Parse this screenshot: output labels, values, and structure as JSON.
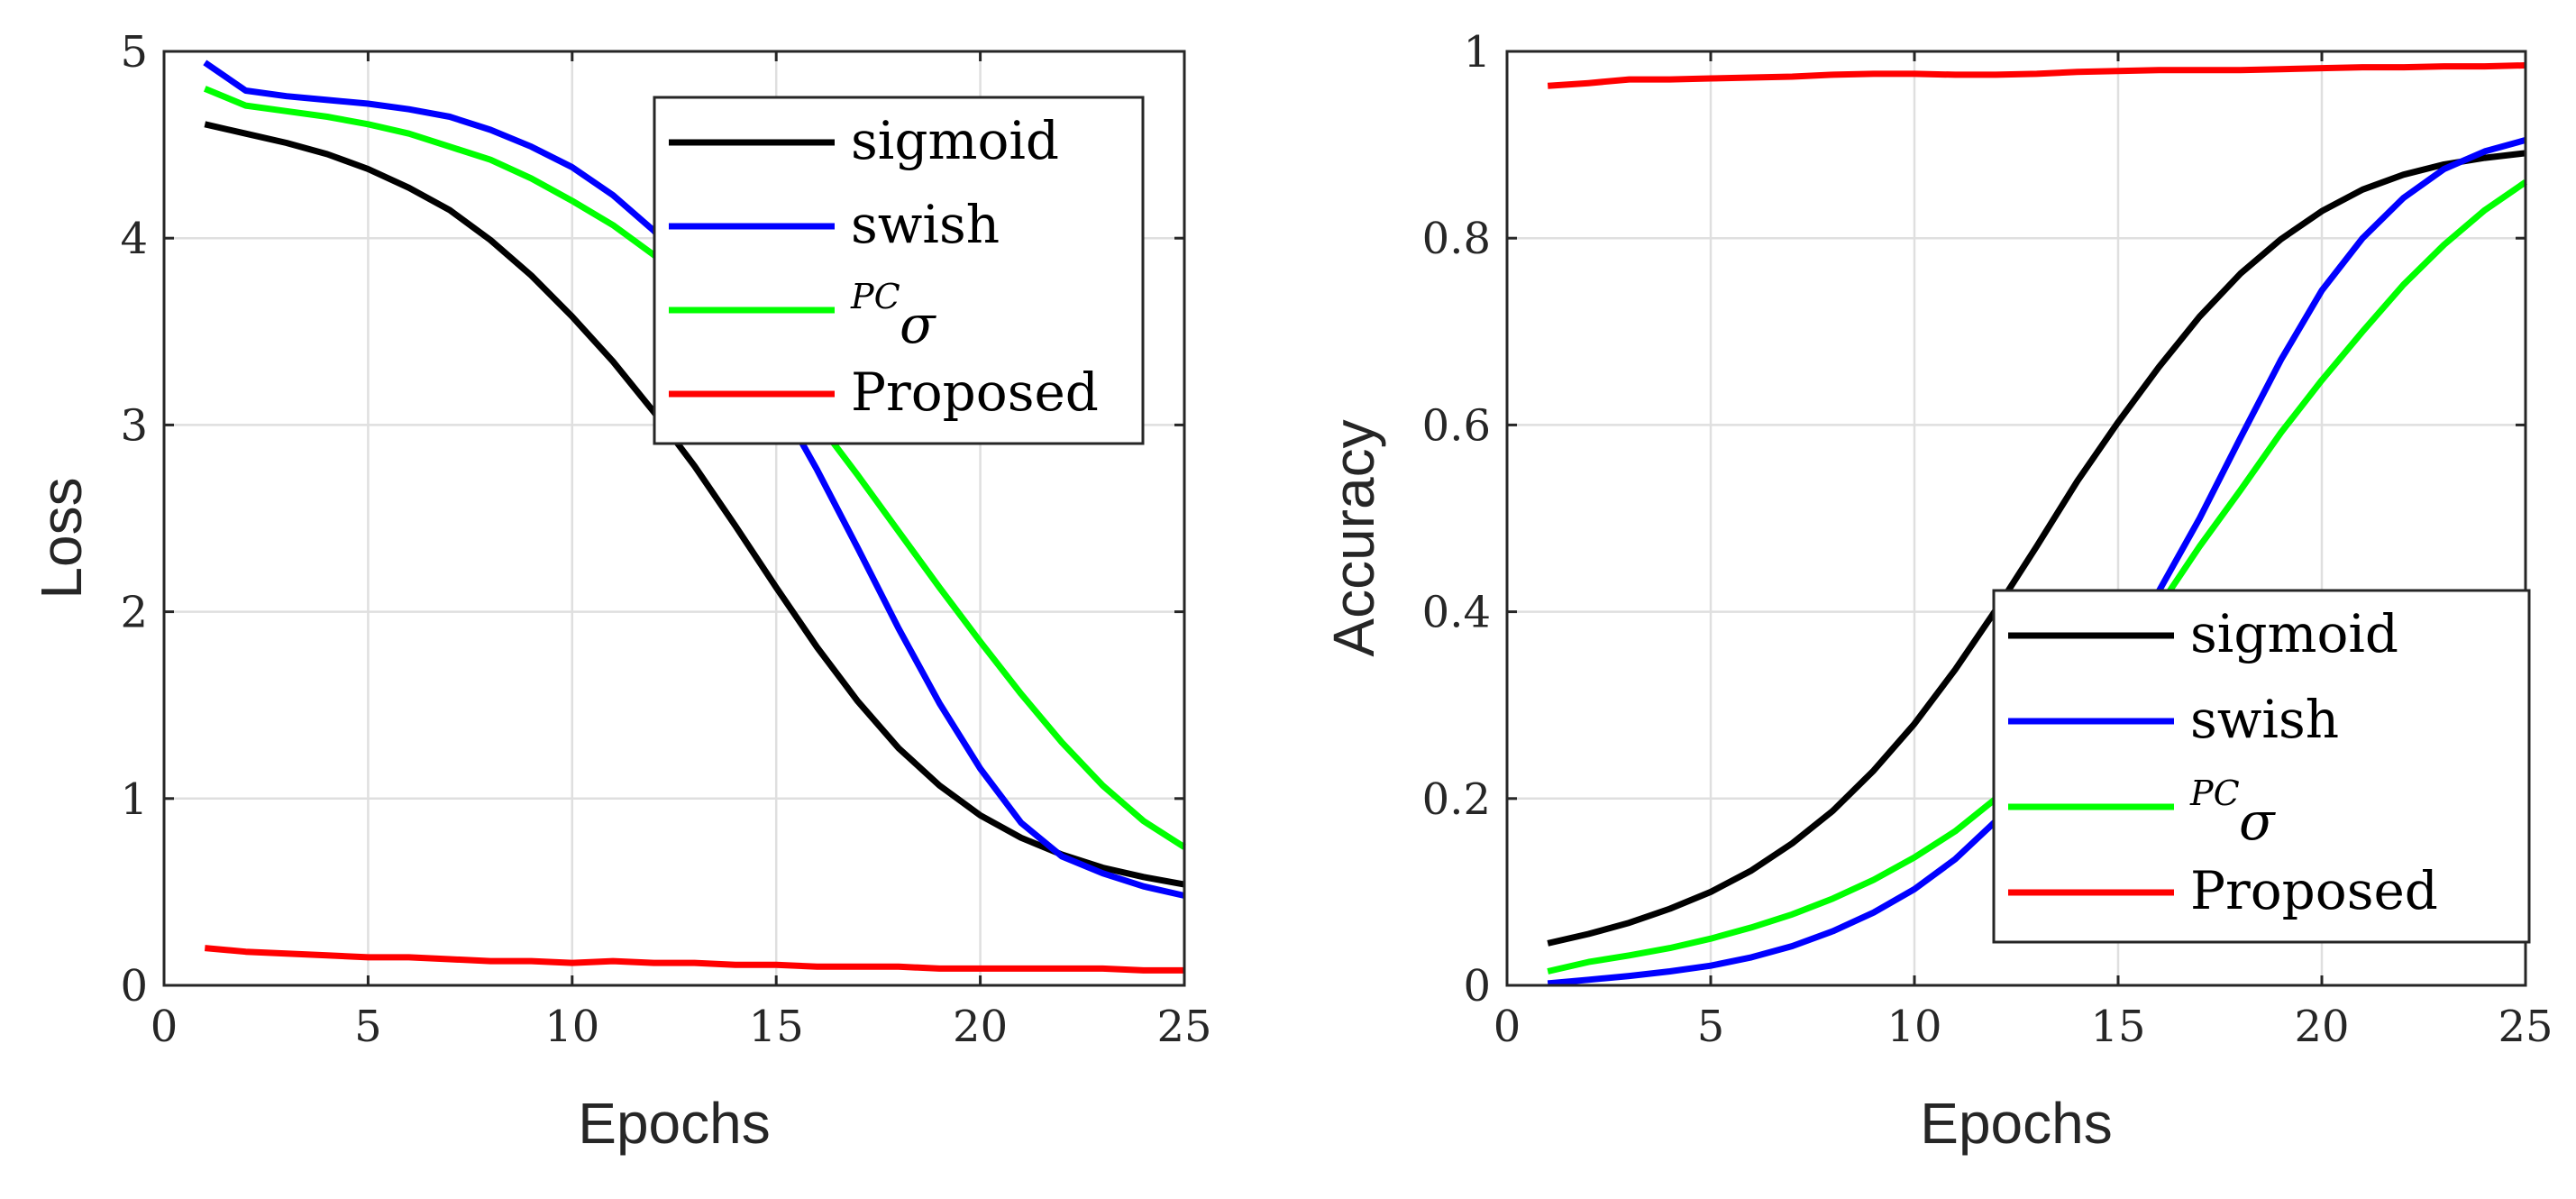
{
  "chart_data": [
    {
      "type": "line",
      "xlabel": "Epochs",
      "ylabel": "Loss",
      "xlim": [
        0,
        25
      ],
      "ylim": [
        0,
        5
      ],
      "xticks": [
        "0",
        "5",
        "10",
        "15",
        "20",
        "25"
      ],
      "yticks": [
        "0",
        "1",
        "2",
        "3",
        "4",
        "5"
      ],
      "grid": true,
      "legend_position": "top-right",
      "x": [
        1,
        2,
        3,
        4,
        5,
        6,
        7,
        8,
        9,
        10,
        11,
        12,
        13,
        14,
        15,
        16,
        17,
        18,
        19,
        20,
        21,
        22,
        23,
        24,
        25
      ],
      "series": [
        {
          "name": "sigmoid",
          "color": "#000000",
          "values": [
            4.61,
            4.56,
            4.51,
            4.45,
            4.37,
            4.27,
            4.15,
            3.99,
            3.8,
            3.58,
            3.34,
            3.07,
            2.78,
            2.46,
            2.13,
            1.81,
            1.52,
            1.27,
            1.07,
            0.91,
            0.79,
            0.7,
            0.63,
            0.58,
            0.54
          ]
        },
        {
          "name": "swish",
          "color": "#0000ff",
          "values": [
            4.94,
            4.79,
            4.76,
            4.74,
            4.72,
            4.69,
            4.65,
            4.58,
            4.49,
            4.38,
            4.23,
            4.04,
            3.8,
            3.5,
            3.15,
            2.76,
            2.34,
            1.91,
            1.51,
            1.16,
            0.87,
            0.69,
            0.6,
            0.53,
            0.48
          ]
        },
        {
          "name": "PC σ",
          "label_parts": {
            "sup": "PC",
            "base": "σ"
          },
          "color": "#00ff00",
          "values": [
            4.8,
            4.71,
            4.68,
            4.65,
            4.61,
            4.56,
            4.49,
            4.42,
            4.32,
            4.2,
            4.07,
            3.91,
            3.73,
            3.53,
            3.29,
            3.02,
            2.73,
            2.43,
            2.13,
            1.84,
            1.56,
            1.3,
            1.07,
            0.88,
            0.74
          ]
        },
        {
          "name": "Proposed",
          "color": "#ff0000",
          "values": [
            0.2,
            0.18,
            0.17,
            0.16,
            0.15,
            0.15,
            0.14,
            0.13,
            0.13,
            0.12,
            0.13,
            0.12,
            0.12,
            0.11,
            0.11,
            0.1,
            0.1,
            0.1,
            0.09,
            0.09,
            0.09,
            0.09,
            0.09,
            0.08,
            0.08
          ]
        }
      ]
    },
    {
      "type": "line",
      "xlabel": "Epochs",
      "ylabel": "Accuracy",
      "xlim": [
        0,
        25
      ],
      "ylim": [
        0,
        1
      ],
      "xticks": [
        "0",
        "5",
        "10",
        "15",
        "20",
        "25"
      ],
      "yticks": [
        "0",
        "0.2",
        "0.4",
        "0.6",
        "0.8",
        "1"
      ],
      "grid": true,
      "legend_position": "bottom-right",
      "x": [
        1,
        2,
        3,
        4,
        5,
        6,
        7,
        8,
        9,
        10,
        11,
        12,
        13,
        14,
        15,
        16,
        17,
        18,
        19,
        20,
        21,
        22,
        23,
        24,
        25
      ],
      "series": [
        {
          "name": "sigmoid",
          "color": "#000000",
          "values": [
            0.045,
            0.055,
            0.067,
            0.082,
            0.1,
            0.123,
            0.152,
            0.187,
            0.23,
            0.28,
            0.338,
            0.402,
            0.47,
            0.54,
            0.603,
            0.662,
            0.716,
            0.762,
            0.799,
            0.829,
            0.852,
            0.868,
            0.879,
            0.886,
            0.891
          ]
        },
        {
          "name": "swish",
          "color": "#0000ff",
          "values": [
            0.002,
            0.006,
            0.01,
            0.015,
            0.021,
            0.03,
            0.042,
            0.058,
            0.078,
            0.103,
            0.135,
            0.176,
            0.226,
            0.285,
            0.35,
            0.422,
            0.5,
            0.586,
            0.67,
            0.744,
            0.8,
            0.843,
            0.874,
            0.893,
            0.905
          ]
        },
        {
          "name": "PC σ",
          "label_parts": {
            "sup": "PC",
            "base": "σ"
          },
          "color": "#00ff00",
          "values": [
            0.015,
            0.025,
            0.032,
            0.04,
            0.05,
            0.062,
            0.076,
            0.093,
            0.113,
            0.137,
            0.165,
            0.2,
            0.24,
            0.29,
            0.345,
            0.405,
            0.47,
            0.53,
            0.592,
            0.648,
            0.7,
            0.75,
            0.793,
            0.83,
            0.86
          ]
        },
        {
          "name": "Proposed",
          "color": "#ff0000",
          "values": [
            0.963,
            0.966,
            0.97,
            0.97,
            0.971,
            0.972,
            0.973,
            0.975,
            0.976,
            0.976,
            0.975,
            0.975,
            0.976,
            0.978,
            0.979,
            0.98,
            0.98,
            0.98,
            0.981,
            0.982,
            0.983,
            0.983,
            0.984,
            0.984,
            0.985
          ]
        }
      ]
    }
  ]
}
